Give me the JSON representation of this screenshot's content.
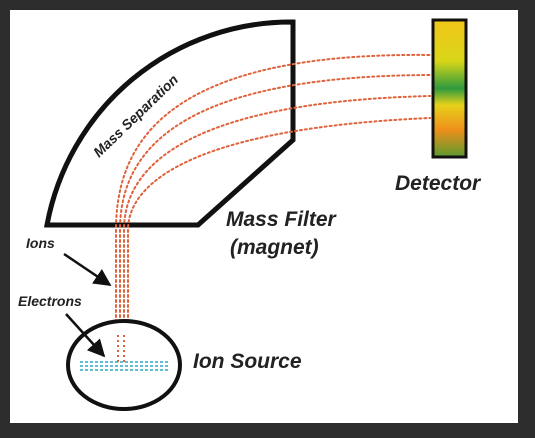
{
  "labels": {
    "mass_separation": "Mass Separation",
    "detector": "Detector",
    "mass_filter": "Mass Filter",
    "magnet": "(magnet)",
    "ions": "Ions",
    "electrons": "Electrons",
    "ion_source": "Ion Source"
  },
  "colors": {
    "frame": "#2d2d2d",
    "panel": "#ffffff",
    "outline": "#111111",
    "ion_beam": "#e0613a",
    "electron_beam": "#29a9c9",
    "detector_gradient": [
      "#f3c61a",
      "#d8d618",
      "#2f9a3e",
      "#e6d21a",
      "#ef8f1b",
      "#d9731d",
      "#5a9a2e"
    ]
  }
}
